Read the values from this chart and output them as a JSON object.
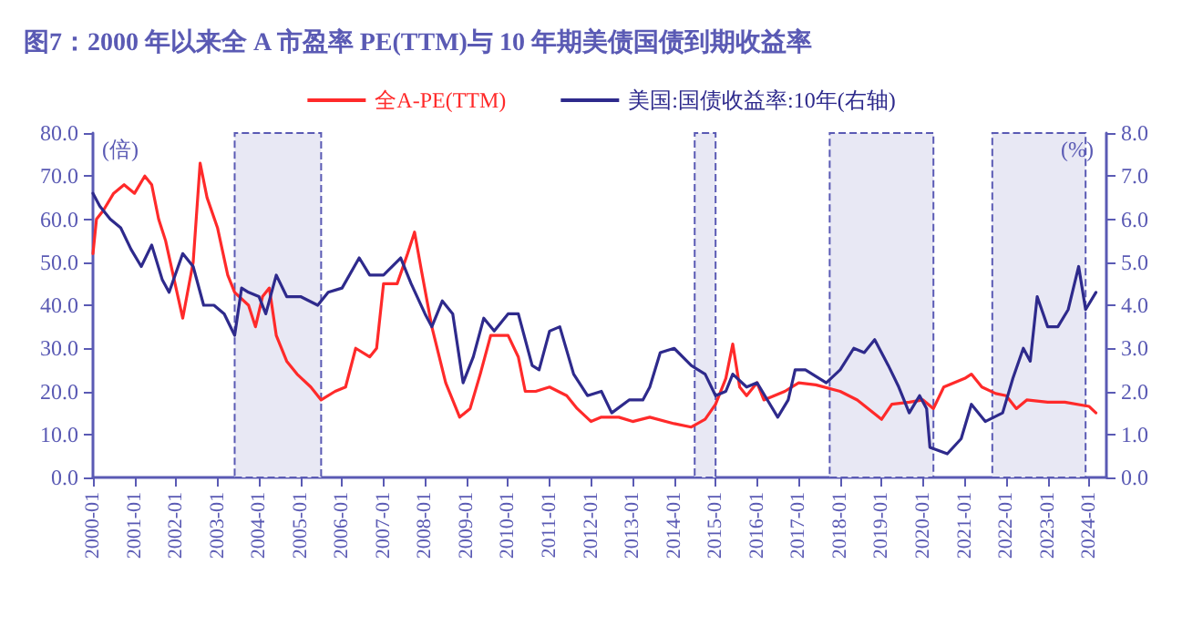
{
  "chart_data": {
    "type": "line",
    "title": "图7：2000 年以来全 A 市盈率 PE(TTM)与 10 年期美债国债到期收益率",
    "ylabel": "(倍)",
    "y2label": "(%)",
    "xlim": [
      "2000-01",
      "2024-06"
    ],
    "xticks": [
      "2000-01",
      "2001-01",
      "2002-01",
      "2003-01",
      "2004-01",
      "2005-01",
      "2006-01",
      "2007-01",
      "2008-01",
      "2009-01",
      "2010-01",
      "2011-01",
      "2012-01",
      "2013-01",
      "2014-01",
      "2015-01",
      "2016-01",
      "2017-01",
      "2018-01",
      "2019-01",
      "2020-01",
      "2021-01",
      "2022-01",
      "2023-01",
      "2024-01"
    ],
    "ylim": [
      0,
      80
    ],
    "yticks": [
      {
        "value": 0,
        "label": "0.0"
      },
      {
        "value": 10,
        "label": "10.0"
      },
      {
        "value": 20,
        "label": "20.0"
      },
      {
        "value": 30,
        "label": "30.0"
      },
      {
        "value": 40,
        "label": "40.0"
      },
      {
        "value": 50,
        "label": "50.0"
      },
      {
        "value": 60,
        "label": "60.0"
      },
      {
        "value": 70,
        "label": "70.0"
      },
      {
        "value": 80,
        "label": "80.0"
      }
    ],
    "y2lim": [
      0,
      8
    ],
    "y2ticks": [
      {
        "value": 0,
        "label": "0.0"
      },
      {
        "value": 1,
        "label": "1.0"
      },
      {
        "value": 2,
        "label": "2.0"
      },
      {
        "value": 3,
        "label": "3.0"
      },
      {
        "value": 4,
        "label": "4.0"
      },
      {
        "value": 5,
        "label": "5.0"
      },
      {
        "value": 6,
        "label": "6.0"
      },
      {
        "value": 7,
        "label": "7.0"
      },
      {
        "value": 8,
        "label": "8.0"
      }
    ],
    "grid": false,
    "legend": "top",
    "marker": "none",
    "line_style": "solid",
    "bands": [
      {
        "axis": "x",
        "from": "2003-06",
        "to": "2005-07",
        "color": "#e8e8f4"
      },
      {
        "axis": "x",
        "from": "2014-07",
        "to": "2015-01",
        "color": "#e8e8f4"
      },
      {
        "axis": "x",
        "from": "2017-10",
        "to": "2020-04",
        "color": "#e8e8f4"
      },
      {
        "axis": "x",
        "from": "2021-09",
        "to": "2023-12",
        "color": "#e8e8f4"
      }
    ],
    "series": [
      {
        "name": "全A-PE(TTM)",
        "color": "#ff2a2a",
        "x": [
          "2000-01",
          "2000-02",
          "2000-04",
          "2000-07",
          "2000-10",
          "2001-01",
          "2001-04",
          "2001-06",
          "2001-08",
          "2001-10",
          "2002-01",
          "2002-03",
          "2002-06",
          "2002-08",
          "2002-10",
          "2003-01",
          "2003-04",
          "2003-06",
          "2003-10",
          "2003-12",
          "2004-02",
          "2004-04",
          "2004-06",
          "2004-09",
          "2004-12",
          "2005-04",
          "2005-07",
          "2005-11",
          "2006-02",
          "2006-05",
          "2006-09",
          "2006-11",
          "2007-01",
          "2007-05",
          "2007-08",
          "2007-10",
          "2007-12",
          "2008-03",
          "2008-07",
          "2008-11",
          "2009-02",
          "2009-05",
          "2009-08",
          "2010-01",
          "2010-04",
          "2010-06",
          "2010-09",
          "2011-01",
          "2011-06",
          "2011-09",
          "2012-01",
          "2012-04",
          "2012-09",
          "2013-01",
          "2013-06",
          "2014-01",
          "2014-06",
          "2014-10",
          "2015-01",
          "2015-04",
          "2015-06",
          "2015-08",
          "2015-10",
          "2016-01",
          "2016-03",
          "2016-06",
          "2016-09",
          "2017-01",
          "2017-06",
          "2018-01",
          "2018-06",
          "2019-01",
          "2019-04",
          "2019-09",
          "2020-01",
          "2020-04",
          "2020-07",
          "2021-01",
          "2021-03",
          "2021-06",
          "2021-10",
          "2022-01",
          "2022-04",
          "2022-07",
          "2023-01",
          "2023-06",
          "2024-01",
          "2024-03"
        ],
        "values": [
          52,
          60,
          62,
          66,
          68,
          66,
          70,
          68,
          60,
          55,
          44,
          37,
          50,
          73,
          65,
          58,
          47,
          43,
          40,
          35,
          42,
          44,
          33,
          27,
          24,
          21,
          18,
          20,
          21,
          30,
          28,
          30,
          45,
          45,
          52,
          57,
          48,
          35,
          22,
          14,
          16,
          24,
          33,
          33,
          28,
          20,
          20,
          21,
          19,
          16,
          13,
          14,
          14,
          13,
          14,
          12.5,
          11.7,
          13.5,
          17,
          23,
          31,
          21,
          19,
          22,
          18,
          19,
          20,
          22,
          21.5,
          20,
          18,
          13.5,
          17,
          17.5,
          18,
          16,
          21,
          23,
          24,
          21,
          19.5,
          19,
          16,
          18,
          17.5,
          17.5,
          16.5,
          15
        ]
      },
      {
        "name": "美国:国债收益率:10年(右轴)",
        "color": "#2e2a8c",
        "axis": "y2",
        "x": [
          "2000-01",
          "2000-03",
          "2000-06",
          "2000-09",
          "2000-12",
          "2001-03",
          "2001-06",
          "2001-09",
          "2001-11",
          "2002-03",
          "2002-06",
          "2002-09",
          "2002-12",
          "2003-03",
          "2003-06",
          "2003-08",
          "2003-10",
          "2004-01",
          "2004-03",
          "2004-06",
          "2004-09",
          "2005-01",
          "2005-06",
          "2005-09",
          "2006-01",
          "2006-06",
          "2006-09",
          "2007-01",
          "2007-06",
          "2007-09",
          "2008-01",
          "2008-03",
          "2008-06",
          "2008-09",
          "2008-12",
          "2009-03",
          "2009-06",
          "2009-09",
          "2010-01",
          "2010-04",
          "2010-08",
          "2010-10",
          "2011-01",
          "2011-04",
          "2011-08",
          "2011-12",
          "2012-04",
          "2012-07",
          "2012-12",
          "2013-04",
          "2013-06",
          "2013-09",
          "2014-01",
          "2014-06",
          "2014-10",
          "2015-01",
          "2015-04",
          "2015-06",
          "2015-10",
          "2016-01",
          "2016-04",
          "2016-07",
          "2016-10",
          "2016-12",
          "2017-03",
          "2017-09",
          "2018-01",
          "2018-05",
          "2018-08",
          "2018-11",
          "2019-03",
          "2019-06",
          "2019-09",
          "2019-12",
          "2020-02",
          "2020-03",
          "2020-08",
          "2020-12",
          "2021-03",
          "2021-07",
          "2021-12",
          "2022-03",
          "2022-06",
          "2022-08",
          "2022-10",
          "2023-01",
          "2023-04",
          "2023-07",
          "2023-10",
          "2023-12",
          "2024-03"
        ],
        "values": [
          6.6,
          6.3,
          6.0,
          5.8,
          5.3,
          4.9,
          5.4,
          4.6,
          4.3,
          5.2,
          4.9,
          4.0,
          4.0,
          3.8,
          3.3,
          4.4,
          4.3,
          4.2,
          3.8,
          4.7,
          4.2,
          4.2,
          4.0,
          4.3,
          4.4,
          5.1,
          4.7,
          4.7,
          5.1,
          4.5,
          3.8,
          3.5,
          4.1,
          3.8,
          2.2,
          2.8,
          3.7,
          3.4,
          3.8,
          3.8,
          2.6,
          2.5,
          3.4,
          3.5,
          2.4,
          1.9,
          2.0,
          1.5,
          1.8,
          1.8,
          2.1,
          2.9,
          3.0,
          2.6,
          2.4,
          1.9,
          2.0,
          2.4,
          2.1,
          2.2,
          1.8,
          1.4,
          1.8,
          2.5,
          2.5,
          2.2,
          2.5,
          3.0,
          2.9,
          3.2,
          2.6,
          2.1,
          1.5,
          1.9,
          1.6,
          0.7,
          0.55,
          0.9,
          1.7,
          1.3,
          1.5,
          2.3,
          3.0,
          2.7,
          4.2,
          3.5,
          3.5,
          3.9,
          4.9,
          3.9,
          4.3
        ]
      }
    ]
  }
}
